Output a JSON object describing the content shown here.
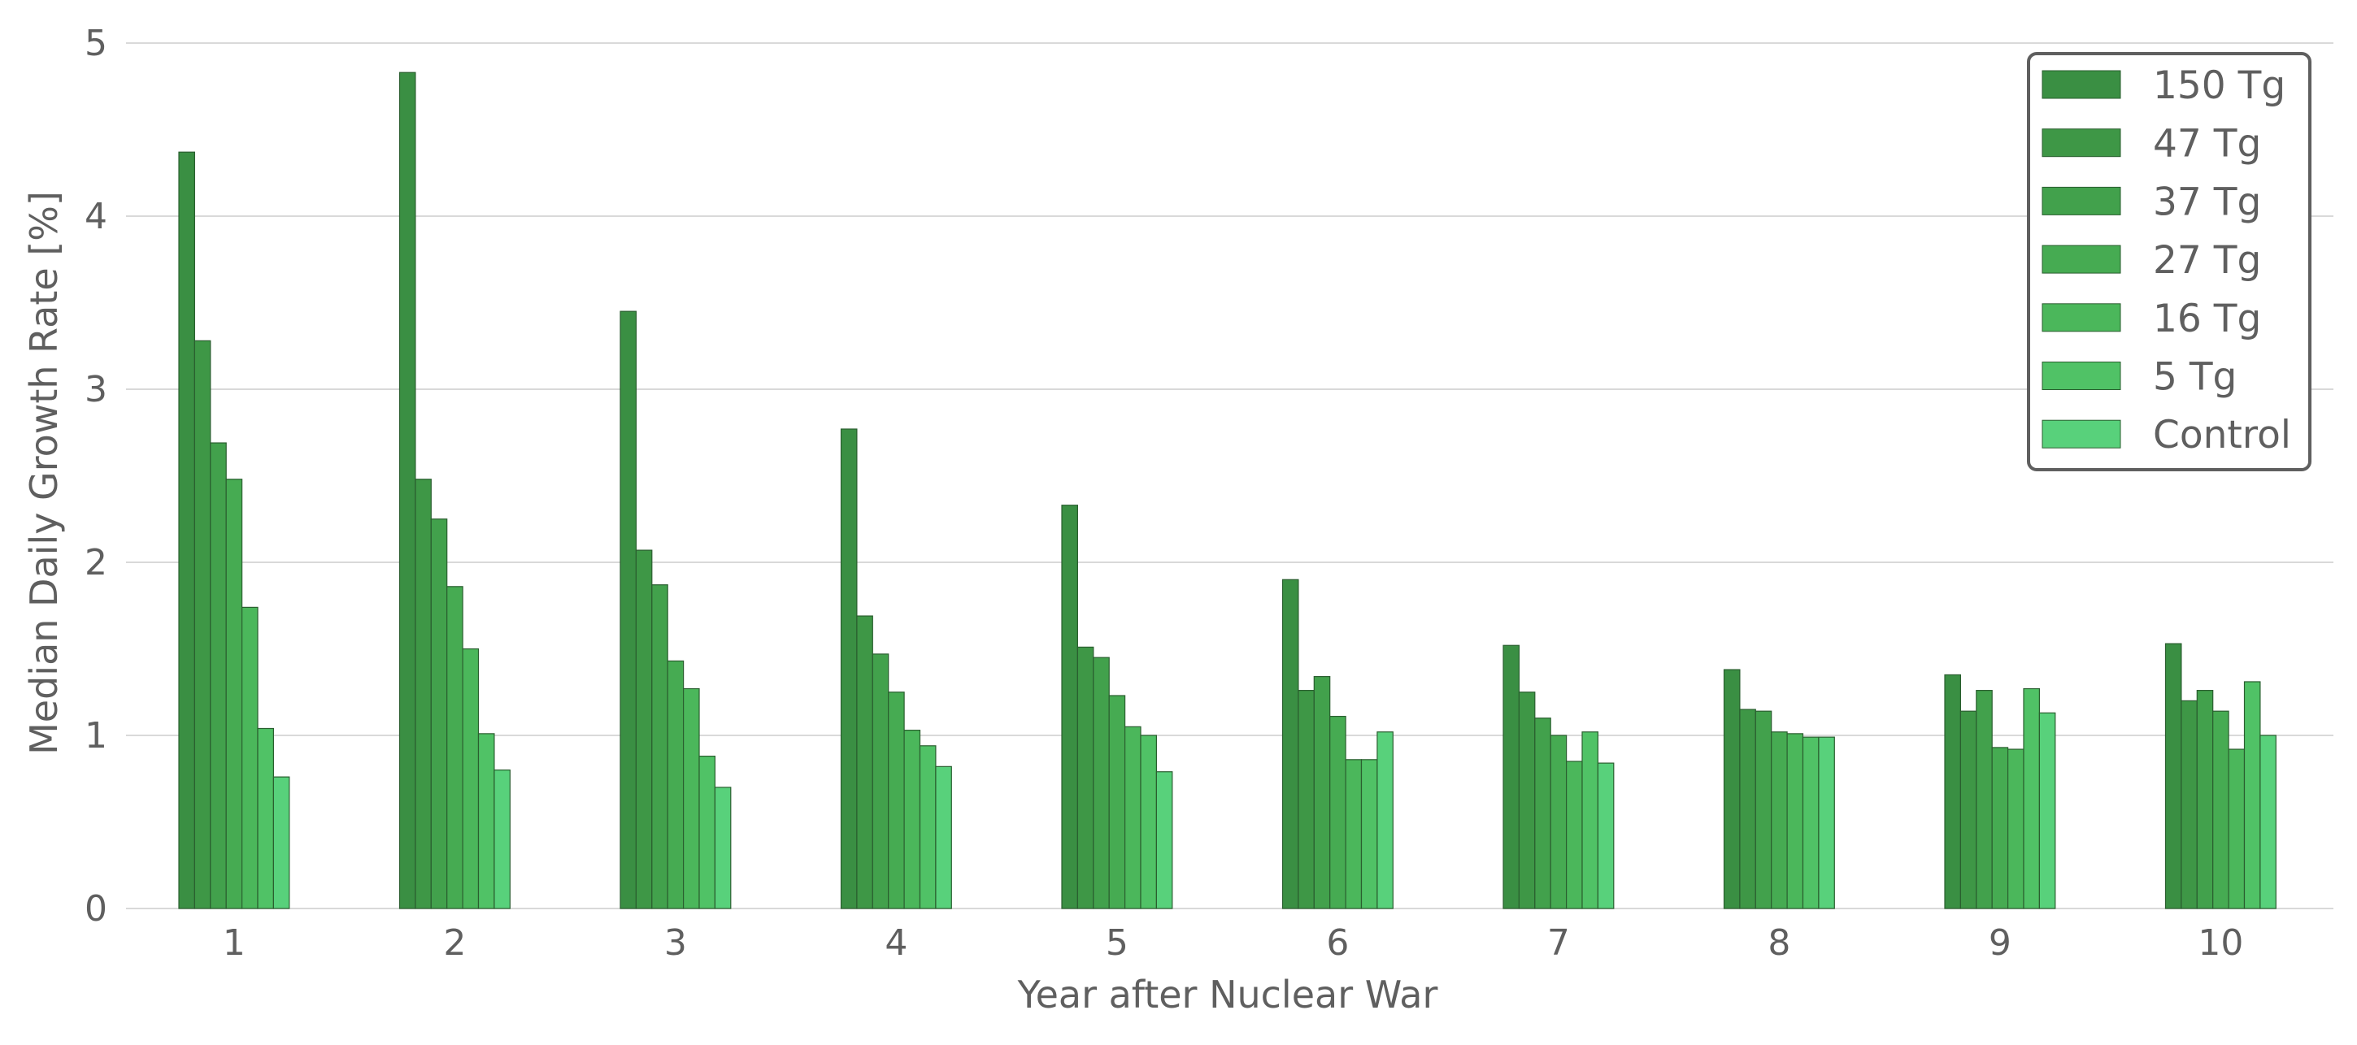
{
  "chart_data": {
    "type": "bar",
    "title": "",
    "xlabel": "Year after Nuclear War",
    "ylabel": "Median Daily Growth Rate [%]",
    "ylim": [
      0,
      5
    ],
    "yticks": [
      "0",
      "1",
      "2",
      "3",
      "4",
      "5"
    ],
    "grid": "horizontal",
    "legend_position": "top-right",
    "categories": [
      "1",
      "2",
      "3",
      "4",
      "5",
      "6",
      "7",
      "8",
      "9",
      "10"
    ],
    "series": [
      {
        "name": "150 Tg",
        "color": "#3a8f43",
        "values": [
          4.37,
          4.83,
          3.45,
          2.77,
          2.33,
          1.9,
          1.52,
          1.38,
          1.35,
          1.53
        ]
      },
      {
        "name": "47 Tg",
        "color": "#3e9746",
        "values": [
          3.28,
          2.48,
          2.07,
          1.69,
          1.51,
          1.26,
          1.25,
          1.15,
          1.14,
          1.2
        ]
      },
      {
        "name": "37 Tg",
        "color": "#42a14c",
        "values": [
          2.69,
          2.25,
          1.87,
          1.47,
          1.45,
          1.34,
          1.1,
          1.14,
          1.26,
          1.26
        ]
      },
      {
        "name": "27 Tg",
        "color": "#46ab52",
        "values": [
          2.48,
          1.86,
          1.43,
          1.25,
          1.23,
          1.11,
          1.0,
          1.02,
          0.93,
          1.14
        ]
      },
      {
        "name": "16 Tg",
        "color": "#4bb75b",
        "values": [
          1.74,
          1.5,
          1.27,
          1.03,
          1.05,
          0.86,
          0.85,
          1.01,
          0.92,
          0.92
        ]
      },
      {
        "name": "5 Tg",
        "color": "#50c266",
        "values": [
          1.04,
          1.01,
          0.88,
          0.94,
          1.0,
          0.86,
          1.02,
          0.99,
          1.27,
          1.31
        ]
      },
      {
        "name": "Control",
        "color": "#58d17b",
        "values": [
          0.76,
          0.8,
          0.7,
          0.82,
          0.79,
          1.02,
          0.84,
          0.99,
          1.13,
          1.0
        ]
      }
    ]
  }
}
